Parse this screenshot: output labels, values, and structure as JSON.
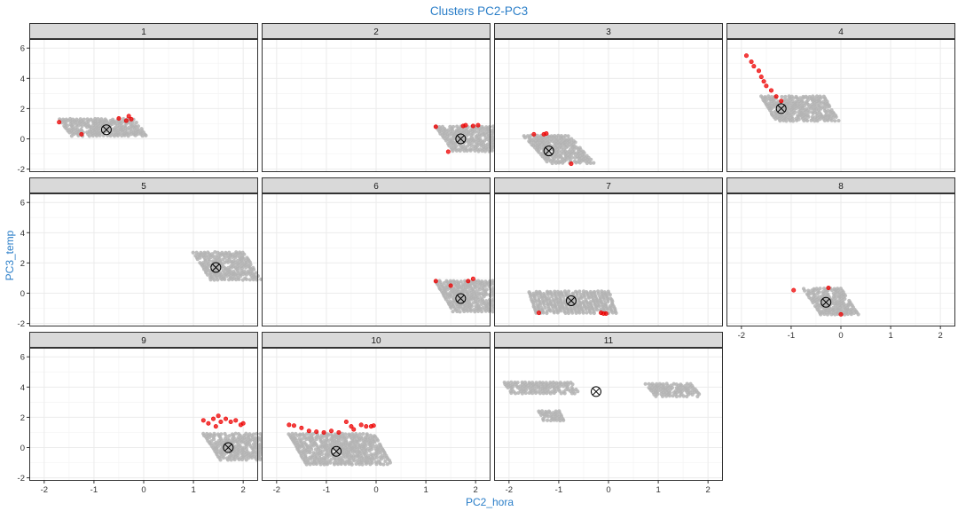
{
  "chart_data": {
    "type": "scatter",
    "title": "Clusters PC2-PC3",
    "xlabel": "PC2_hora",
    "ylabel": "PC3_temp",
    "xlim": [
      -2.3,
      2.3
    ],
    "ylim": [
      -2.2,
      6.6
    ],
    "x_ticks": [
      "-2",
      "-1",
      "0",
      "1",
      "2"
    ],
    "y_ticks": [
      "-2",
      "0",
      "2",
      "4",
      "6"
    ],
    "grid": true,
    "facets": true,
    "colors": {
      "points": "#b3b3b3",
      "outliers": "#ee0000",
      "centroid": "#000000",
      "strip_bg": "#d9d9d9",
      "title": "#2a7ec8",
      "grid": "#ebebeb"
    },
    "panels": [
      {
        "label": "1",
        "centroid": [
          -0.75,
          0.6
        ],
        "clusters": [
          {
            "x0": -1.7,
            "x1": -0.2,
            "yt": 1.3,
            "yb": 0.2,
            "slant": 0.25
          }
        ],
        "outliers": [
          [
            -1.7,
            1.1
          ],
          [
            -0.3,
            1.5
          ],
          [
            -0.25,
            1.3
          ],
          [
            -0.35,
            1.2
          ],
          [
            -1.25,
            0.3
          ],
          [
            -0.5,
            1.35
          ]
        ]
      },
      {
        "label": "2",
        "centroid": [
          1.7,
          0.0
        ],
        "clusters": [
          {
            "x0": 1.2,
            "x1": 2.35,
            "yt": 0.8,
            "yb": -0.8,
            "slant": 0.35
          }
        ],
        "outliers": [
          [
            1.2,
            0.8
          ],
          [
            1.45,
            -0.85
          ],
          [
            1.75,
            0.85
          ],
          [
            2.05,
            0.9
          ],
          [
            1.95,
            0.85
          ],
          [
            1.8,
            0.9
          ]
        ]
      },
      {
        "label": "3",
        "centroid": [
          -1.2,
          -0.8
        ],
        "clusters": [
          {
            "x0": -1.7,
            "x1": -0.8,
            "yt": 0.2,
            "yb": -1.6,
            "slant": 0.5
          }
        ],
        "outliers": [
          [
            -1.5,
            0.3
          ],
          [
            -1.3,
            0.3
          ],
          [
            -1.25,
            0.35
          ],
          [
            -0.75,
            -1.65
          ]
        ]
      },
      {
        "label": "4",
        "centroid": [
          -1.2,
          2.0
        ],
        "clusters": [
          {
            "x0": -1.6,
            "x1": -0.35,
            "yt": 2.8,
            "yb": 1.2,
            "slant": 0.3
          }
        ],
        "outliers": [
          [
            -1.9,
            5.5
          ],
          [
            -1.8,
            5.1
          ],
          [
            -1.75,
            4.8
          ],
          [
            -1.65,
            4.5
          ],
          [
            -1.6,
            4.1
          ],
          [
            -1.55,
            3.8
          ],
          [
            -1.5,
            3.5
          ],
          [
            -1.4,
            3.2
          ],
          [
            -1.3,
            2.8
          ],
          [
            -1.2,
            2.5
          ]
        ]
      },
      {
        "label": "5",
        "centroid": [
          1.45,
          1.7
        ],
        "clusters": [
          {
            "x0": 1.0,
            "x1": 2.0,
            "yt": 2.7,
            "yb": 0.9,
            "slant": 0.35
          }
        ],
        "outliers": []
      },
      {
        "label": "6",
        "centroid": [
          1.7,
          -0.35
        ],
        "clusters": [
          {
            "x0": 1.2,
            "x1": 2.35,
            "yt": 0.8,
            "yb": -1.2,
            "slant": 0.35
          }
        ],
        "outliers": [
          [
            1.2,
            0.8
          ],
          [
            1.95,
            0.95
          ],
          [
            1.85,
            0.8
          ],
          [
            1.5,
            0.5
          ]
        ]
      },
      {
        "label": "7",
        "centroid": [
          -0.75,
          -0.5
        ],
        "clusters": [
          {
            "x0": -1.6,
            "x1": 0.0,
            "yt": 0.1,
            "yb": -1.3,
            "slant": 0.15
          }
        ],
        "outliers": [
          [
            -0.1,
            -1.35
          ],
          [
            -0.05,
            -1.35
          ],
          [
            -0.15,
            -1.3
          ],
          [
            -1.4,
            -1.3
          ]
        ]
      },
      {
        "label": "8",
        "centroid": [
          -0.3,
          -0.6
        ],
        "clusters": [
          {
            "x0": -0.75,
            "x1": 0.0,
            "yt": 0.3,
            "yb": -1.4,
            "slant": 0.35
          }
        ],
        "outliers": [
          [
            -0.95,
            0.2
          ],
          [
            -0.25,
            0.35
          ],
          [
            0.0,
            -1.4
          ]
        ]
      },
      {
        "label": "9",
        "centroid": [
          1.7,
          0.0
        ],
        "clusters": [
          {
            "x0": 1.2,
            "x1": 2.35,
            "yt": 0.9,
            "yb": -0.8,
            "slant": 0.35
          }
        ],
        "outliers": [
          [
            1.2,
            1.8
          ],
          [
            1.3,
            1.6
          ],
          [
            1.4,
            1.9
          ],
          [
            1.5,
            2.1
          ],
          [
            1.55,
            1.7
          ],
          [
            1.65,
            1.9
          ],
          [
            1.75,
            1.7
          ],
          [
            1.85,
            1.8
          ],
          [
            1.95,
            1.5
          ],
          [
            2.0,
            1.6
          ],
          [
            1.45,
            1.4
          ]
        ]
      },
      {
        "label": "10",
        "centroid": [
          -0.8,
          -0.25
        ],
        "clusters": [
          {
            "x0": -1.75,
            "x1": -0.05,
            "yt": 0.9,
            "yb": -1.1,
            "slant": 0.35
          }
        ],
        "outliers": [
          [
            -1.75,
            1.5
          ],
          [
            -1.65,
            1.45
          ],
          [
            -1.5,
            1.3
          ],
          [
            -1.35,
            1.1
          ],
          [
            -1.2,
            1.05
          ],
          [
            -1.05,
            1.0
          ],
          [
            -0.9,
            1.1
          ],
          [
            -0.75,
            1.0
          ],
          [
            -0.6,
            1.7
          ],
          [
            -0.5,
            1.4
          ],
          [
            -0.45,
            1.2
          ],
          [
            -0.3,
            1.5
          ],
          [
            -0.2,
            1.4
          ],
          [
            -0.1,
            1.4
          ],
          [
            -0.05,
            1.45
          ]
        ]
      },
      {
        "label": "11",
        "centroid": [
          -0.25,
          3.7
        ],
        "clusters": [
          {
            "x0": -2.1,
            "x1": -0.75,
            "yt": 4.3,
            "yb": 3.6,
            "slant": 0.15
          },
          {
            "x0": -1.4,
            "x1": -1.0,
            "yt": 2.4,
            "yb": 1.8,
            "slant": 0.1
          },
          {
            "x0": 0.75,
            "x1": 1.65,
            "yt": 4.2,
            "yb": 3.4,
            "slant": 0.2
          }
        ],
        "outliers": []
      }
    ]
  }
}
